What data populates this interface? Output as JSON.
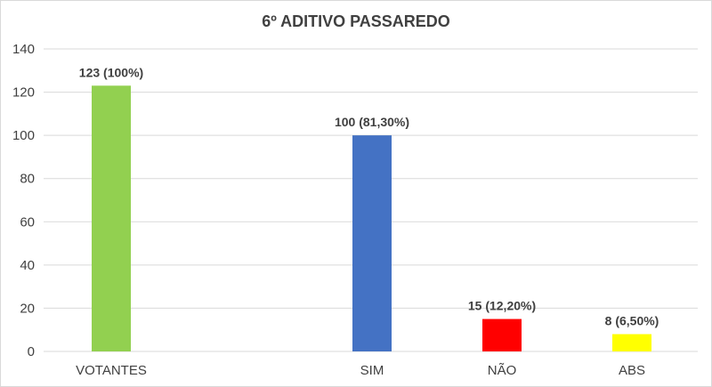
{
  "chart_data": {
    "type": "bar",
    "title": "6º ADITIVO PASSAREDO",
    "categories": [
      "VOTANTES",
      "SIM",
      "NÃO",
      "ABS"
    ],
    "values": [
      123,
      100,
      15,
      8
    ],
    "data_labels": [
      "123 (100%)",
      "100 (81,30%)",
      "15 (12,20%)",
      "8 (6,50%)"
    ],
    "colors": [
      "#92d050",
      "#4472c4",
      "#ff0000",
      "#ffff00"
    ],
    "ylim": [
      0,
      140
    ],
    "yticks": [
      0,
      20,
      40,
      60,
      80,
      100,
      120,
      140
    ],
    "grid": true,
    "legend": "none"
  }
}
